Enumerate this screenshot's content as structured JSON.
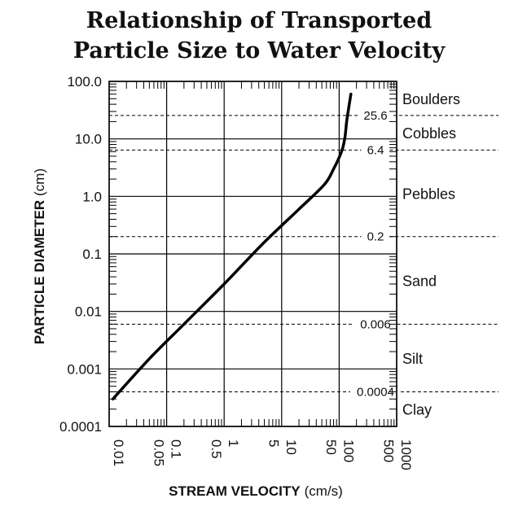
{
  "chart_data": {
    "type": "line",
    "title_line1": "Relationship of Transported",
    "title_line2": "Particle Size to Water Velocity",
    "xlabel": "STREAM VELOCITY",
    "xlabel_unit": "(cm/s)",
    "ylabel": "PARTICLE DIAMETER",
    "ylabel_unit": "(cm)",
    "x_scale": "log",
    "y_scale": "log",
    "xlim": [
      0.01,
      1000
    ],
    "ylim": [
      0.0001,
      100
    ],
    "grid": true,
    "x_ticks": [
      "0.01",
      "0.05",
      "0.1",
      "0.5",
      "1",
      "5",
      "10",
      "50",
      "100",
      "500",
      "1000"
    ],
    "y_ticks": [
      "0.0001",
      "0.001",
      "0.01",
      "0.1",
      "1.0",
      "10.0",
      "100.0"
    ],
    "series": [
      {
        "x": [
          0.0116,
          0.05,
          0.2,
          1,
          5,
          20,
          55,
          80,
          110,
          125,
          135,
          150,
          160
        ],
        "y": [
          0.0003,
          0.0015,
          0.006,
          0.03,
          0.16,
          0.6,
          1.6,
          3.0,
          6.0,
          10.0,
          20.0,
          40.0,
          60.0
        ]
      }
    ],
    "size_class_boundaries": [
      {
        "value": 25.6,
        "label": "25.6"
      },
      {
        "value": 6.4,
        "label": "6.4"
      },
      {
        "value": 0.2,
        "label": "0.2"
      },
      {
        "value": 0.006,
        "label": "0.006"
      },
      {
        "value": 0.0004,
        "label": "0.0004"
      }
    ],
    "size_classes": [
      "Boulders",
      "Cobbles",
      "Pebbles",
      "Sand",
      "Silt",
      "Clay"
    ]
  }
}
